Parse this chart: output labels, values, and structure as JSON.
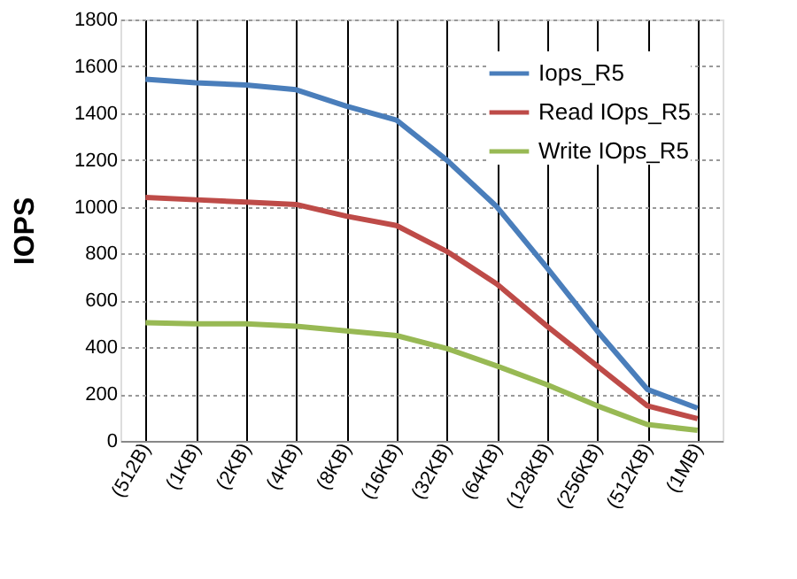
{
  "chart_data": {
    "type": "line",
    "ylabel": "IOPS",
    "categories": [
      "(512B)",
      "(1KB)",
      "(2KB)",
      "(4KB)",
      "(8KB)",
      "(16KB)",
      "(32KB)",
      "(64KB)",
      "(128KB)",
      "(256KB)",
      "(512KB)",
      "(1MB)"
    ],
    "series": [
      {
        "name": "Iops_R5",
        "color": "#4a7ebb",
        "values": [
          1545,
          1530,
          1520,
          1500,
          1430,
          1370,
          1200,
          1000,
          740,
          470,
          220,
          140
        ]
      },
      {
        "name": "Read IOps_R5",
        "color": "#be4b48",
        "values": [
          1040,
          1030,
          1020,
          1010,
          960,
          920,
          810,
          670,
          490,
          320,
          150,
          95
        ]
      },
      {
        "name": "Write IOps_R5",
        "color": "#98b954",
        "values": [
          505,
          500,
          500,
          490,
          470,
          450,
          395,
          320,
          240,
          150,
          70,
          45
        ]
      }
    ],
    "ylim": [
      0,
      1800
    ],
    "yticks": [
      0,
      200,
      400,
      600,
      800,
      1000,
      1200,
      1400,
      1600,
      1800
    ],
    "grid": true,
    "legend": "top right",
    "marker": "none",
    "line_style": "solid"
  }
}
